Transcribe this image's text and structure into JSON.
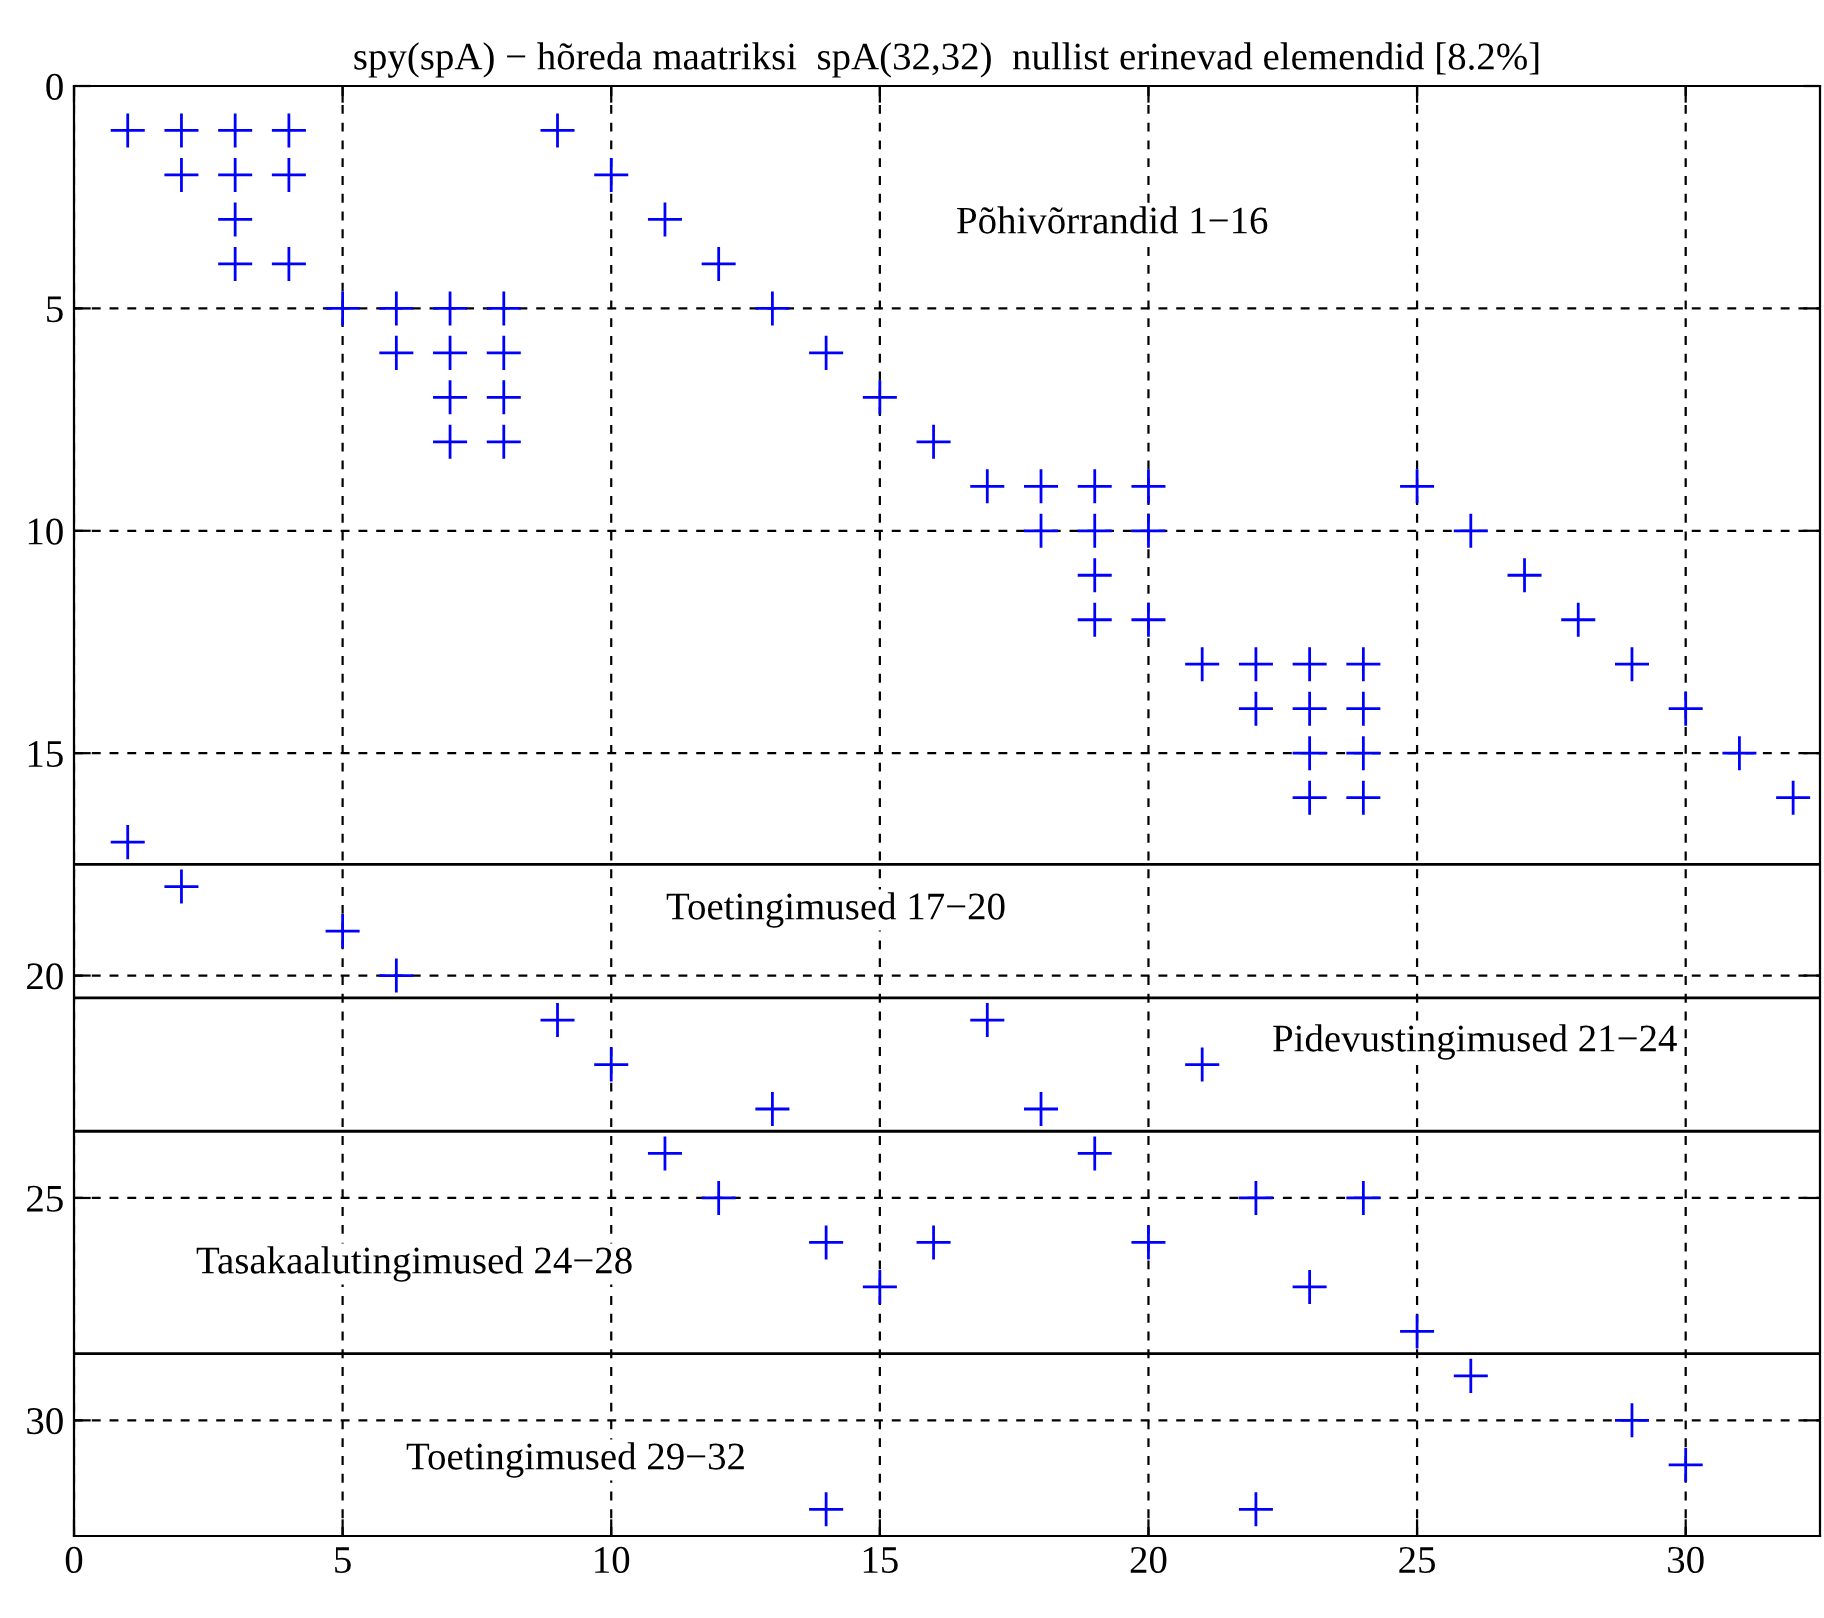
{
  "chart_data": {
    "type": "scatter",
    "title": "spy(spA) − hõreda maatriksi  spA(32,32)  nullist erinevad elemendid [8.2%]",
    "series": [
      {
        "color": "#0000ff",
        "x": [
          1,
          2,
          3,
          4,
          9,
          2,
          3,
          4,
          10,
          3,
          11,
          3,
          4,
          12,
          5,
          6,
          7,
          8,
          13,
          6,
          7,
          8,
          14,
          7,
          8,
          15,
          7,
          8,
          16,
          17,
          18,
          19,
          20,
          25,
          18,
          19,
          20,
          26,
          19,
          27,
          19,
          20,
          28,
          21,
          22,
          23,
          24,
          29,
          22,
          23,
          24,
          30,
          23,
          24,
          31,
          23,
          24,
          32,
          1,
          2,
          5,
          6,
          9,
          17,
          10,
          21,
          13,
          18,
          11,
          19,
          12,
          22,
          24,
          14,
          16,
          20,
          15,
          23,
          25,
          26,
          29,
          30,
          14,
          22
        ],
        "values": [
          1,
          1,
          1,
          1,
          1,
          2,
          2,
          2,
          2,
          3,
          3,
          4,
          4,
          4,
          5,
          5,
          5,
          5,
          5,
          6,
          6,
          6,
          6,
          7,
          7,
          7,
          8,
          8,
          8,
          9,
          9,
          9,
          9,
          9,
          10,
          10,
          10,
          10,
          11,
          11,
          12,
          12,
          12,
          13,
          13,
          13,
          13,
          13,
          14,
          14,
          14,
          14,
          15,
          15,
          15,
          16,
          16,
          16,
          17,
          18,
          19,
          20,
          21,
          21,
          22,
          22,
          23,
          23,
          24,
          24,
          25,
          25,
          25,
          26,
          26,
          26,
          27,
          27,
          28,
          29,
          30,
          31,
          32,
          32
        ]
      }
    ],
    "marker": "cross",
    "xlim": [
      0,
      32.5
    ],
    "ylim": [
      32.6,
      0
    ],
    "xticks": [
      0,
      5,
      10,
      15,
      20,
      25,
      30
    ],
    "yticks": [
      0,
      5,
      10,
      15,
      20,
      25,
      30
    ],
    "grid": true,
    "ref_lines": [
      {
        "axis": "y",
        "value": 17.5,
        "label": null,
        "color": "#000000",
        "line_style": "solid"
      },
      {
        "axis": "y",
        "value": 20.5,
        "label": null,
        "color": "#000000",
        "line_style": "solid"
      },
      {
        "axis": "y",
        "value": 23.5,
        "label": null,
        "color": "#000000",
        "line_style": "solid"
      },
      {
        "axis": "y",
        "value": 28.5,
        "label": null,
        "color": "#000000",
        "line_style": "solid"
      }
    ],
    "annotations": [
      "Põhivõrrandid 1−16",
      "Toetingimused 17−20",
      "Pidevustingimused 21−24",
      "Tasakaalutingimused 24−28",
      "Toetingimused 29−32"
    ]
  }
}
